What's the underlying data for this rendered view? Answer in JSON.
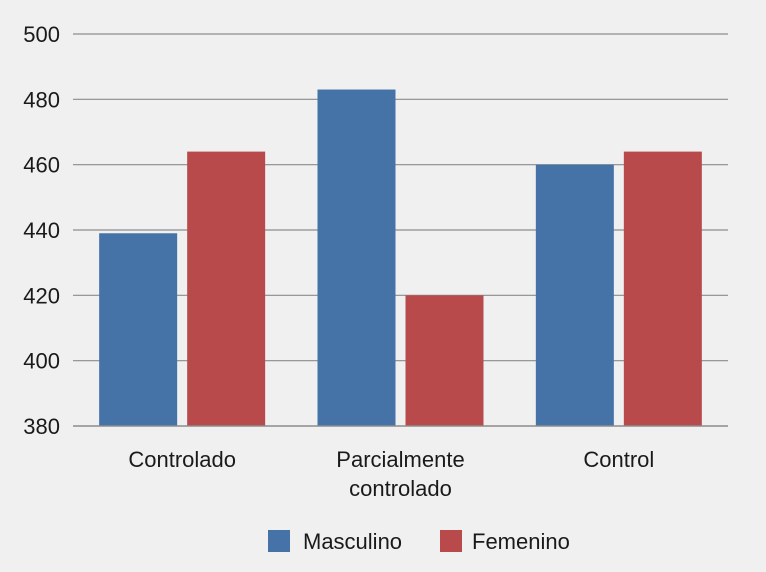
{
  "chart_data": {
    "type": "bar",
    "title": "",
    "xlabel": "",
    "ylabel": "",
    "categories": [
      [
        "Controlado"
      ],
      [
        "Parcialmente",
        "controlado"
      ],
      [
        "Control"
      ]
    ],
    "series": [
      {
        "name": "Masculino",
        "color": "#4572a7",
        "values": [
          439,
          483,
          460
        ]
      },
      {
        "name": "Femenino",
        "color": "#b94a4c",
        "values": [
          464,
          420,
          464
        ]
      }
    ],
    "ylim": [
      380,
      500
    ],
    "yticks": [
      380,
      400,
      420,
      440,
      460,
      480,
      500
    ],
    "grid": true,
    "legend_position": "bottom-center"
  }
}
